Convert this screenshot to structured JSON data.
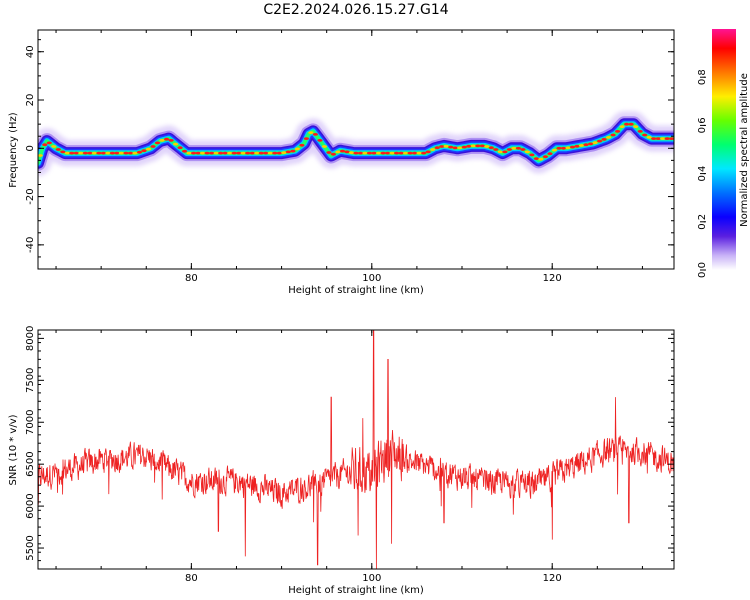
{
  "figure_title": "C2E2.2024.026.15.27.G14",
  "colors": {
    "snr_line": "#ee2222",
    "colormap": [
      "#ffffff",
      "#c9b3f7",
      "#5a1fe0",
      "#0a00ff",
      "#0070ff",
      "#00e8ff",
      "#00ff70",
      "#66ff00",
      "#ffee00",
      "#ff7700",
      "#ff0000",
      "#ff1493"
    ]
  },
  "chart_data": [
    {
      "type": "heatmap",
      "title": "",
      "xlabel": "Height of straight line (km)",
      "ylabel": "Frequency (Hz)",
      "xlim": [
        63,
        133.5
      ],
      "ylim": [
        -50,
        49
      ],
      "xticks": [
        80,
        100,
        120
      ],
      "yticks": [
        -40,
        -20,
        0,
        20,
        40
      ],
      "grid": false,
      "colorbar": {
        "label": "Normalized spectral amplitude",
        "range": [
          0,
          1
        ],
        "ticks": [
          "0.0",
          "0.2",
          "0.4",
          "0.6",
          "0.8"
        ]
      },
      "ridge": {
        "x": [
          63,
          63.5,
          64,
          65,
          66,
          70,
          74,
          75.5,
          76.5,
          77.5,
          78.5,
          79.5,
          81,
          85,
          90,
          91.5,
          92.5,
          93,
          93.5,
          94.5,
          95.5,
          96.5,
          98,
          102,
          106,
          107,
          108,
          109.5,
          111,
          112.5,
          113.5,
          114.5,
          115.5,
          116.5,
          117.5,
          118.5,
          119.5,
          120.5,
          121.5,
          123,
          124.5,
          126,
          127,
          128,
          129,
          130,
          131,
          132,
          133
        ],
        "freq": [
          -6,
          0,
          3,
          0,
          -2,
          -2,
          -2,
          0,
          3,
          4,
          1,
          -2,
          -2,
          -2,
          -2,
          -1,
          2,
          6,
          7,
          2,
          -3,
          -1,
          -2,
          -2,
          -2,
          0,
          1,
          0,
          1,
          1,
          0,
          -2,
          0,
          0,
          -2,
          -5,
          -3,
          0,
          0,
          1,
          2,
          4,
          6,
          10,
          10,
          6,
          4,
          4,
          4
        ]
      }
    },
    {
      "type": "line",
      "title": "",
      "xlabel": "Height of straight line (km)",
      "ylabel": "SNR (10 * v/v)",
      "xlim": [
        63,
        133.5
      ],
      "ylim": [
        5250,
        8100
      ],
      "xticks": [
        80,
        100,
        120
      ],
      "yticks": [
        5500,
        6000,
        6500,
        7000,
        7500,
        8000
      ],
      "grid": false,
      "series": [
        {
          "name": "",
          "baseline_x": [
            63,
            65,
            70,
            75,
            80,
            85,
            90,
            95,
            97,
            100,
            102,
            104,
            108,
            112,
            118,
            122,
            126,
            130,
            133.5
          ],
          "baseline_y": [
            6350,
            6400,
            6550,
            6600,
            6300,
            6300,
            6150,
            6300,
            6400,
            6400,
            6650,
            6550,
            6400,
            6300,
            6250,
            6450,
            6650,
            6650,
            6500
          ],
          "noise_amplitude": 220,
          "spikes": [
            {
              "x": 100.2,
              "y": 8100
            },
            {
              "x": 100.5,
              "y": 5250
            },
            {
              "x": 101.2,
              "y": 6600
            },
            {
              "x": 101.8,
              "y": 7750
            },
            {
              "x": 99.0,
              "y": 7050
            },
            {
              "x": 98.5,
              "y": 5650
            },
            {
              "x": 102.2,
              "y": 5550
            },
            {
              "x": 95.5,
              "y": 7300
            },
            {
              "x": 94.0,
              "y": 5300
            },
            {
              "x": 86,
              "y": 5400
            },
            {
              "x": 83,
              "y": 5700
            },
            {
              "x": 127,
              "y": 7300
            },
            {
              "x": 128.5,
              "y": 5800
            },
            {
              "x": 120,
              "y": 5600
            },
            {
              "x": 108,
              "y": 5800
            }
          ]
        }
      ]
    }
  ]
}
